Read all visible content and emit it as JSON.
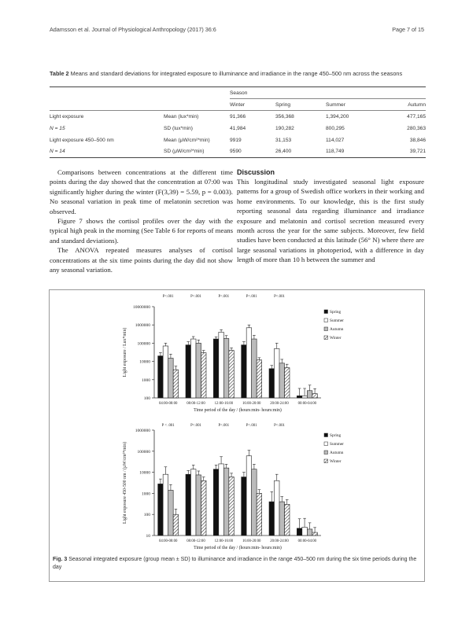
{
  "header": {
    "left": "Adamsson et al. Journal of Physiological Anthropology (2017) 36:6",
    "right": "Page 7 of 15"
  },
  "table": {
    "label": "Table 2",
    "caption": "Means and standard deviations for integrated exposure to illuminance and irradiance in the range 450–500 nm across the seasons",
    "season_header": "Season",
    "columns": [
      "Winter",
      "Spring",
      "Summer",
      "Autumn"
    ],
    "rows": [
      {
        "label": "Light exposure",
        "stat": "Mean (lux*min)",
        "values": [
          "91,366",
          "356,368",
          "1,394,200",
          "477,165"
        ]
      },
      {
        "label": "N = 15",
        "stat": "SD (lux*min)",
        "values": [
          "41,984",
          "190,282",
          "800,295",
          "280,363"
        ]
      },
      {
        "label": "Light exposure 450–500 nm",
        "stat": "Mean (μW/cm²*min)",
        "values": [
          "9919",
          "31,153",
          "114,027",
          "38,846"
        ]
      },
      {
        "label": "N = 14",
        "stat": "SD (μW/cm²*min)",
        "values": [
          "9590",
          "26,400",
          "118,749",
          "39,721"
        ]
      }
    ]
  },
  "body_left": [
    "Comparisons between concentrations at the different time points during the day showed that the concentration at 07:00 was significantly higher during the winter (F(3,39) = 5.59, p = 0.003). No seasonal variation in peak time of melatonin secretion was observed.",
    "Figure 7 shows the cortisol profiles over the day with the typical high peak in the morning (See Table 6 for reports of means and standard deviations).",
    "The ANOVA repeated measures analyses of cortisol concentrations at the six time points during the day did not show any seasonal variation."
  ],
  "body_right": {
    "heading": "Discussion",
    "text": "This longitudinal study investigated seasonal light exposure patterns for a group of Swedish office workers in their working and home environments. To our knowledge, this is the first study reporting seasonal data regarding illuminance and irradiance exposure and melatonin and cortisol secretion measured every month across the year for the same subjects. Moreover, few field studies have been conducted at this latitude (56° N) where there are large seasonal variations in photoperiod, with a difference in day length of more than 10 h between the summer and"
  },
  "figure": {
    "label": "Fig. 3",
    "caption": "Seasonal integrated exposure (group mean ± SD) to illuminance and irradiance in the range 450–500 nm during the six time periods during the day"
  },
  "chart_data": [
    {
      "type": "bar",
      "ylabel": "Light exposure / Lux*min)",
      "xlabel": "Time period of the day / (hours:min- hours:min)",
      "yscale": "log",
      "ylim": [
        100,
        10000000
      ],
      "yticks": [
        "100",
        "1000",
        "10000",
        "100000",
        "1000000",
        "10000000"
      ],
      "categories": [
        "04:00-08:00",
        "08:00-12:00",
        "12:00-16:00",
        "16:00-20:00",
        "20:00-24:00",
        "00:00-04:00"
      ],
      "annotations": [
        "P<.001",
        "P<.001",
        "P<.001",
        "P<.001",
        "P<.001"
      ],
      "legend_position": "top-right",
      "series": [
        {
          "name": "Spring",
          "values": [
            20000,
            80000,
            170000,
            80000,
            4000,
            130
          ],
          "err": [
            10000,
            40000,
            50000,
            40000,
            2000,
            200
          ]
        },
        {
          "name": "Summer",
          "values": [
            70000,
            170000,
            400000,
            700000,
            50000,
            130
          ],
          "err": [
            30000,
            60000,
            150000,
            300000,
            50000,
            200
          ]
        },
        {
          "name": "Autumn",
          "values": [
            15000,
            100000,
            180000,
            170000,
            8000,
            250
          ],
          "err": [
            10000,
            50000,
            80000,
            100000,
            5000,
            250
          ]
        },
        {
          "name": "Winter",
          "values": [
            3500,
            30000,
            40000,
            12000,
            4500,
            170
          ],
          "err": [
            2000,
            10000,
            15000,
            4000,
            2500,
            150
          ]
        }
      ]
    },
    {
      "type": "bar",
      "ylabel": "Light exposure 450-500 nm / (µW/cm²*min)",
      "xlabel": "Time period of the day / (hours:min- hours:min)",
      "yscale": "log",
      "ylim": [
        10,
        1000000
      ],
      "yticks": [
        "10",
        "100",
        "1000",
        "10000",
        "100000",
        "1000000"
      ],
      "categories": [
        "04:00-08:00",
        "08:00-12:00",
        "12:00-16:00",
        "16:00-20:00",
        "20:00-24:00",
        "00:00-04:00"
      ],
      "annotations": [
        "P < .001",
        "P<.001",
        "P<.001",
        "P<.001",
        "P<.001"
      ],
      "legend_position": "top-right",
      "series": [
        {
          "name": "Spring",
          "values": [
            2800,
            8000,
            14000,
            6000,
            400,
            22
          ],
          "err": [
            2000,
            4000,
            8000,
            4000,
            800,
            40
          ]
        },
        {
          "name": "Summer",
          "values": [
            8000,
            14000,
            25000,
            60000,
            4000,
            25
          ],
          "err": [
            10000,
            8000,
            30000,
            50000,
            4000,
            40
          ]
        },
        {
          "name": "Autumn",
          "values": [
            1400,
            7500,
            16000,
            14000,
            400,
            20
          ],
          "err": [
            1200,
            4000,
            8000,
            10000,
            300,
            20
          ]
        },
        {
          "name": "Winter",
          "values": [
            100,
            4000,
            6000,
            1000,
            300,
            14
          ],
          "err": [
            80,
            2000,
            3000,
            500,
            200,
            10
          ]
        }
      ]
    }
  ]
}
